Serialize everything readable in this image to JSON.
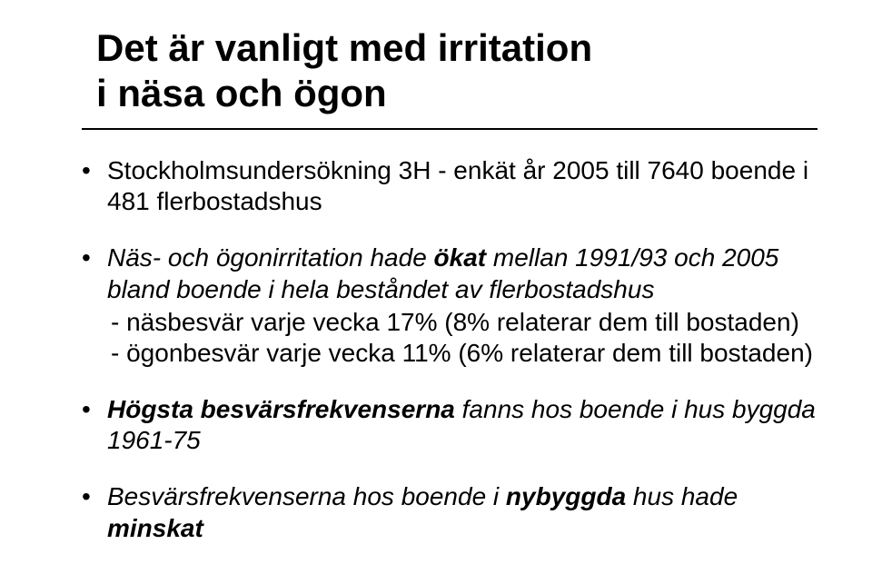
{
  "title_line1": "Det är vanligt med irritation",
  "title_line2": "i näsa och ögon",
  "bullets": {
    "b1": "Stockholmsundersökning 3H - enkät år 2005 till 7640 boende i 481 flerbostadshus",
    "b2_line1_a": "Näs- och ögonirritation hade ",
    "b2_line1_b": "ökat",
    "b2_line1_c": " mellan 1991/93 och 2005 bland boende i hela beståndet av flerbostadshus",
    "b2_sub1": "- näsbesvär varje vecka   17%   (8% relaterar dem till bostaden)",
    "b2_sub2": "- ögonbesvär varje vecka 11% (6% relaterar dem till bostaden)",
    "b3_a": "Högsta besvärsfrekvenserna",
    "b3_b": " fanns hos boende i hus byggda 1961-75",
    "b4_a": "Besvärsfrekvenserna hos boende i ",
    "b4_b": "nybyggda",
    "b4_c": " hus hade ",
    "b4_d": "minskat"
  }
}
